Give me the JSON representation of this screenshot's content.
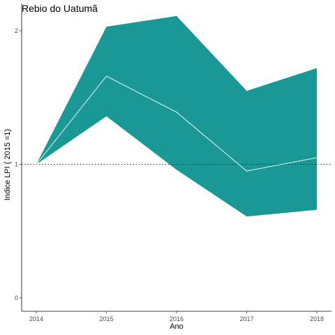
{
  "chart_data": {
    "type": "line",
    "title": "Rebio do Uatumã",
    "xlabel": "Ano",
    "ylabel": "Indice LPI ( 2015 =1)",
    "x": [
      2014,
      2015,
      2016,
      2017,
      2018
    ],
    "xlim": [
      2014,
      2018
    ],
    "ylim": [
      0,
      2.1
    ],
    "yticks": [
      0,
      1,
      2
    ],
    "reference_line": 1,
    "grid": false,
    "series": [
      {
        "values": [
          1.0,
          1.66,
          1.39,
          0.95,
          1.05
        ],
        "lower": [
          1.0,
          1.36,
          0.96,
          0.61,
          0.66
        ],
        "upper": [
          1.0,
          2.03,
          2.11,
          1.55,
          1.72
        ]
      }
    ],
    "colors": {
      "band": "#1a9896",
      "line": "#ffffff",
      "reference": "#000000"
    }
  }
}
